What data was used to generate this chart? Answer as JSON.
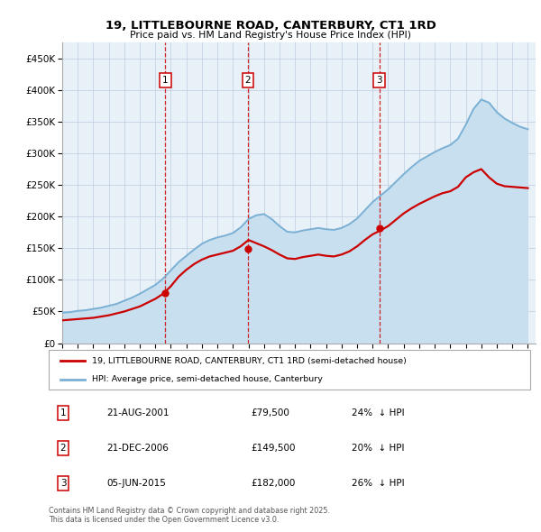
{
  "title": "19, LITTLEBOURNE ROAD, CANTERBURY, CT1 1RD",
  "subtitle": "Price paid vs. HM Land Registry's House Price Index (HPI)",
  "ylim": [
    0,
    475000
  ],
  "yticks": [
    0,
    50000,
    100000,
    150000,
    200000,
    250000,
    300000,
    350000,
    400000,
    450000
  ],
  "ytick_labels": [
    "£0",
    "£50K",
    "£100K",
    "£150K",
    "£200K",
    "£250K",
    "£300K",
    "£350K",
    "£400K",
    "£450K"
  ],
  "legend_label_red": "19, LITTLEBOURNE ROAD, CANTERBURY, CT1 1RD (semi-detached house)",
  "legend_label_blue": "HPI: Average price, semi-detached house, Canterbury",
  "footnote": "Contains HM Land Registry data © Crown copyright and database right 2025.\nThis data is licensed under the Open Government Licence v3.0.",
  "transactions": [
    {
      "num": 1,
      "date": "21-AUG-2001",
      "price": 79500,
      "pct": "24%",
      "dir": "↓"
    },
    {
      "num": 2,
      "date": "21-DEC-2006",
      "price": 149500,
      "pct": "20%",
      "dir": "↓"
    },
    {
      "num": 3,
      "date": "05-JUN-2015",
      "price": 182000,
      "pct": "26%",
      "dir": "↓"
    }
  ],
  "transaction_years": [
    2001.64,
    2006.97,
    2015.43
  ],
  "red_color": "#cc0000",
  "blue_color": "#7ab0d4",
  "blue_fill_color": "#c8dff0",
  "background_color": "#e8f0f8",
  "hpi_years": [
    1995.0,
    1995.5,
    1996.0,
    1996.5,
    1997.0,
    1997.5,
    1998.0,
    1998.5,
    1999.0,
    1999.5,
    2000.0,
    2000.5,
    2001.0,
    2001.5,
    2002.0,
    2002.5,
    2003.0,
    2003.5,
    2004.0,
    2004.5,
    2005.0,
    2005.5,
    2006.0,
    2006.5,
    2007.0,
    2007.5,
    2008.0,
    2008.5,
    2009.0,
    2009.5,
    2010.0,
    2010.5,
    2011.0,
    2011.5,
    2012.0,
    2012.5,
    2013.0,
    2013.5,
    2014.0,
    2014.5,
    2015.0,
    2015.5,
    2016.0,
    2016.5,
    2017.0,
    2017.5,
    2018.0,
    2018.5,
    2019.0,
    2019.5,
    2020.0,
    2020.5,
    2021.0,
    2021.5,
    2022.0,
    2022.5,
    2023.0,
    2023.5,
    2024.0,
    2024.5,
    2025.0
  ],
  "hpi_values": [
    48000,
    49000,
    51000,
    52000,
    54000,
    56000,
    59000,
    62000,
    67000,
    72000,
    78000,
    85000,
    92000,
    102000,
    115000,
    128000,
    138000,
    148000,
    157000,
    163000,
    167000,
    170000,
    174000,
    183000,
    196000,
    202000,
    204000,
    196000,
    185000,
    176000,
    175000,
    178000,
    180000,
    182000,
    180000,
    179000,
    182000,
    188000,
    197000,
    210000,
    223000,
    233000,
    243000,
    255000,
    267000,
    278000,
    288000,
    295000,
    302000,
    308000,
    313000,
    323000,
    345000,
    370000,
    385000,
    380000,
    365000,
    355000,
    348000,
    342000,
    338000
  ],
  "red_years": [
    1995.0,
    1995.5,
    1996.0,
    1996.5,
    1997.0,
    1997.5,
    1998.0,
    1998.5,
    1999.0,
    1999.5,
    2000.0,
    2000.5,
    2001.0,
    2001.5,
    2002.0,
    2002.5,
    2003.0,
    2003.5,
    2004.0,
    2004.5,
    2005.0,
    2005.5,
    2006.0,
    2006.5,
    2007.0,
    2007.5,
    2008.0,
    2008.5,
    2009.0,
    2009.5,
    2010.0,
    2010.5,
    2011.0,
    2011.5,
    2012.0,
    2012.5,
    2013.0,
    2013.5,
    2014.0,
    2014.5,
    2015.0,
    2015.5,
    2016.0,
    2016.5,
    2017.0,
    2017.5,
    2018.0,
    2018.5,
    2019.0,
    2019.5,
    2020.0,
    2020.5,
    2021.0,
    2021.5,
    2022.0,
    2022.5,
    2023.0,
    2023.5,
    2024.0,
    2024.5,
    2025.0
  ],
  "red_values": [
    36000,
    37000,
    38000,
    39000,
    40000,
    42000,
    44000,
    47000,
    50000,
    54000,
    58000,
    64000,
    70000,
    78000,
    90000,
    105000,
    116000,
    125000,
    132000,
    137000,
    140000,
    143000,
    146000,
    153000,
    163000,
    158000,
    153000,
    147000,
    140000,
    134000,
    133000,
    136000,
    138000,
    140000,
    138000,
    137000,
    140000,
    145000,
    153000,
    163000,
    172000,
    178000,
    185000,
    195000,
    205000,
    213000,
    220000,
    226000,
    232000,
    237000,
    240000,
    247000,
    262000,
    270000,
    275000,
    262000,
    252000,
    248000,
    247000,
    246000,
    245000
  ]
}
